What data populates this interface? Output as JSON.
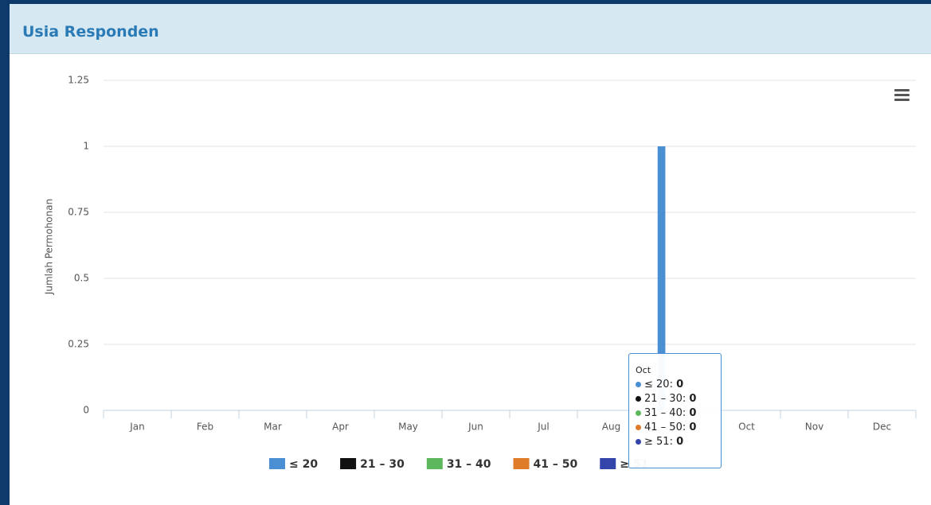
{
  "panel": {
    "title": "Usia Responden"
  },
  "chart_data": {
    "type": "bar",
    "y_label": "Jumlah Permohonan",
    "categories": [
      "Jan",
      "Feb",
      "Mar",
      "Apr",
      "May",
      "Jun",
      "Jul",
      "Aug",
      "Sep",
      "Oct",
      "Nov",
      "Dec"
    ],
    "series": [
      {
        "name": "≤ 20",
        "color": "#4a8fd4",
        "values": [
          0,
          0,
          0,
          0,
          0,
          0,
          0,
          0,
          1,
          0,
          0,
          0
        ]
      },
      {
        "name": "21 – 30",
        "color": "#111111",
        "values": [
          0,
          0,
          0,
          0,
          0,
          0,
          0,
          0,
          0,
          0,
          0,
          0
        ]
      },
      {
        "name": "31 – 40",
        "color": "#5cb85c",
        "values": [
          0,
          0,
          0,
          0,
          0,
          0,
          0,
          0,
          0,
          0,
          0,
          0
        ]
      },
      {
        "name": "41 – 50",
        "color": "#e07b2a",
        "values": [
          0,
          0,
          0,
          0,
          0,
          0,
          0,
          0,
          0,
          0,
          0,
          0
        ]
      },
      {
        "name": "≥ 51",
        "color": "#3344aa",
        "values": [
          0,
          0,
          0,
          0,
          0,
          0,
          0,
          0,
          0,
          0,
          0,
          0
        ]
      }
    ],
    "ylim": [
      0,
      1.25
    ],
    "yticks": [
      0,
      0.25,
      0.5,
      0.75,
      1,
      1.25
    ],
    "grid": true,
    "legend": "bottom"
  }
}
